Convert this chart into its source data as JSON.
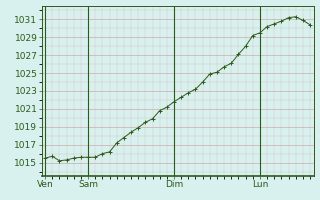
{
  "x_labels": [
    "Ven",
    "Sam",
    "Dim",
    "Lun"
  ],
  "y_values": [
    1015.5,
    1015.7,
    1015.2,
    1015.3,
    1015.5,
    1015.6,
    1015.6,
    1015.6,
    1016.0,
    1016.2,
    1017.2,
    1017.8,
    1018.4,
    1018.9,
    1019.5,
    1019.9,
    1020.8,
    1021.2,
    1021.8,
    1022.3,
    1022.8,
    1023.2,
    1024.0,
    1024.9,
    1025.1,
    1025.7,
    1026.1,
    1027.1,
    1028.0,
    1029.2,
    1029.5,
    1030.2,
    1030.5,
    1030.8,
    1031.2,
    1031.3,
    1030.9,
    1030.4
  ],
  "ylim": [
    1013.5,
    1032.5
  ],
  "yticks": [
    1015,
    1017,
    1019,
    1021,
    1023,
    1025,
    1027,
    1029,
    1031
  ],
  "line_color": "#2d5a1b",
  "marker_color": "#2d5a1b",
  "bg_color": "#d8f0ee",
  "grid_color": "#cc9999",
  "axis_color": "#2d5a1b",
  "tick_label_color": "#2d5a1b",
  "label_fontsize": 6.5,
  "tick_fontsize": 6.5,
  "n_points": 38
}
